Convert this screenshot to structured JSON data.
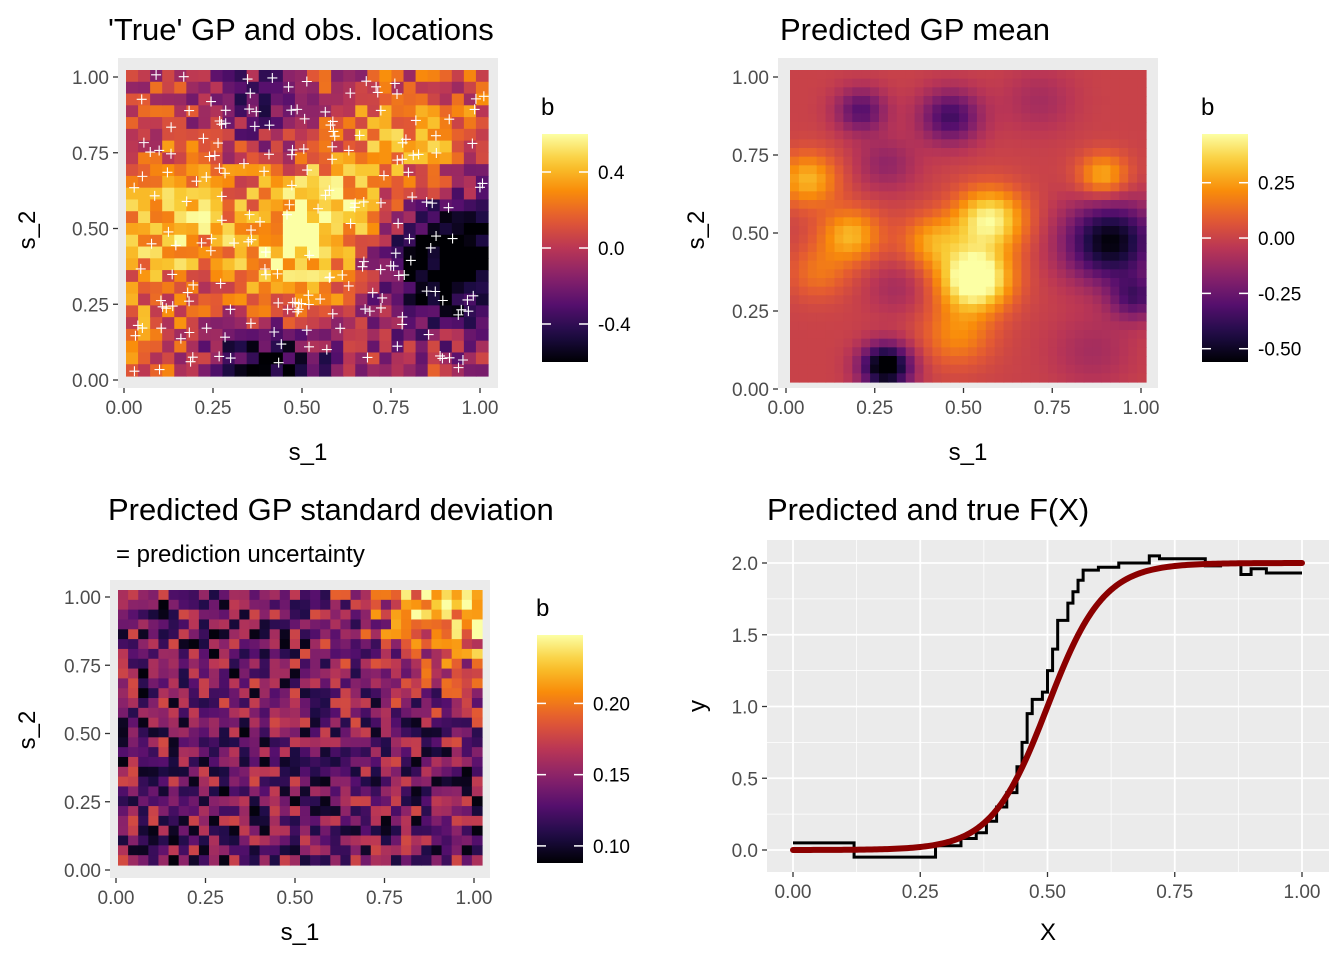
{
  "chart_data": [
    {
      "type": "heatmap",
      "title": "'True' GP and obs. locations",
      "subtitle": "",
      "xlabel": "s_1",
      "ylabel": "s_2",
      "xlim": [
        0,
        1
      ],
      "ylim": [
        0,
        1
      ],
      "xticks": [
        "0.00",
        "0.25",
        "0.50",
        "0.75",
        "1.00"
      ],
      "yticks": [
        "0.00",
        "0.25",
        "0.50",
        "0.75",
        "1.00"
      ],
      "grid_cells": [
        30,
        26
      ],
      "colormap": "inferno",
      "legend": {
        "title": "b",
        "placement": "right",
        "range": [
          -0.6,
          0.6
        ],
        "ticks": [
          -0.4,
          0.0,
          0.4
        ],
        "tick_labels": [
          "-0.4",
          "0.0",
          "0.4"
        ]
      },
      "field_blobs": [
        {
          "x": 0.1,
          "y": 0.5,
          "amp": 0.45,
          "sd": 0.16
        },
        {
          "x": 0.55,
          "y": 0.5,
          "amp": 0.55,
          "sd": 0.14
        },
        {
          "x": 0.8,
          "y": 0.75,
          "amp": 0.35,
          "sd": 0.15
        },
        {
          "x": 0.9,
          "y": 0.4,
          "amp": -0.8,
          "sd": 0.16
        },
        {
          "x": 0.4,
          "y": 0.05,
          "amp": -0.6,
          "sd": 0.13
        },
        {
          "x": 0.35,
          "y": 0.9,
          "amp": -0.3,
          "sd": 0.1
        },
        {
          "x": 0.45,
          "y": 0.25,
          "amp": 0.35,
          "sd": 0.12
        },
        {
          "x": 0.05,
          "y": 0.1,
          "amp": 0.2,
          "sd": 0.12
        }
      ],
      "noise_amplitude": 0.22,
      "observations": {
        "marker": "+",
        "color": "#ffffff",
        "count": 200
      }
    },
    {
      "type": "heatmap",
      "title": "Predicted GP mean",
      "subtitle": "",
      "xlabel": "s_1",
      "ylabel": "s_2",
      "xlim": [
        0,
        1
      ],
      "ylim": [
        0,
        1
      ],
      "xticks": [
        "0.00",
        "0.25",
        "0.50",
        "0.75",
        "1.00"
      ],
      "yticks": [
        "0.00",
        "0.25",
        "0.50",
        "0.75",
        "1.00"
      ],
      "grid_cells": [
        40,
        36
      ],
      "colormap": "inferno",
      "legend": {
        "title": "b",
        "placement": "right",
        "range": [
          -0.56,
          0.47
        ],
        "ticks": [
          -0.5,
          -0.25,
          0.0,
          0.25
        ],
        "tick_labels": [
          "-0.50",
          "-0.25",
          "0.00",
          "0.25"
        ]
      },
      "field_blobs": [
        {
          "x": 0.05,
          "y": 0.65,
          "amp": 0.3,
          "sd": 0.06
        },
        {
          "x": 0.17,
          "y": 0.47,
          "amp": 0.3,
          "sd": 0.06
        },
        {
          "x": 0.52,
          "y": 0.33,
          "amp": 0.6,
          "sd": 0.07
        },
        {
          "x": 0.56,
          "y": 0.52,
          "amp": 0.45,
          "sd": 0.07
        },
        {
          "x": 0.4,
          "y": 0.45,
          "amp": 0.25,
          "sd": 0.06
        },
        {
          "x": 0.47,
          "y": 0.15,
          "amp": 0.2,
          "sd": 0.07
        },
        {
          "x": 0.08,
          "y": 0.35,
          "amp": 0.15,
          "sd": 0.06
        },
        {
          "x": 0.88,
          "y": 0.66,
          "amp": 0.3,
          "sd": 0.05
        },
        {
          "x": 0.9,
          "y": 0.45,
          "amp": -0.55,
          "sd": 0.09
        },
        {
          "x": 0.97,
          "y": 0.27,
          "amp": -0.3,
          "sd": 0.05
        },
        {
          "x": 0.27,
          "y": 0.05,
          "amp": -0.65,
          "sd": 0.05
        },
        {
          "x": 0.45,
          "y": 0.85,
          "amp": -0.35,
          "sd": 0.06
        },
        {
          "x": 0.2,
          "y": 0.87,
          "amp": -0.3,
          "sd": 0.05
        },
        {
          "x": 0.27,
          "y": 0.7,
          "amp": -0.15,
          "sd": 0.06
        },
        {
          "x": 0.85,
          "y": 0.1,
          "amp": -0.1,
          "sd": 0.08
        },
        {
          "x": 0.3,
          "y": 0.3,
          "amp": -0.1,
          "sd": 0.06
        },
        {
          "x": 0.7,
          "y": 0.9,
          "amp": -0.1,
          "sd": 0.07
        }
      ],
      "noise_amplitude": 0.0
    },
    {
      "type": "heatmap",
      "title": "Predicted GP standard deviation",
      "subtitle": " = prediction uncertainty",
      "xlabel": "s_1",
      "ylabel": "s_2",
      "xlim": [
        0,
        1
      ],
      "ylim": [
        0,
        1
      ],
      "xticks": [
        "0.00",
        "0.25",
        "0.50",
        "0.75",
        "1.00"
      ],
      "yticks": [
        "0.00",
        "0.25",
        "0.50",
        "0.75",
        "1.00"
      ],
      "grid_cells": [
        36,
        28
      ],
      "colormap": "inferno",
      "legend": {
        "title": "b",
        "placement": "right",
        "range": [
          0.088,
          0.248
        ],
        "ticks": [
          0.1,
          0.15,
          0.2
        ],
        "tick_labels": [
          "0.10",
          "0.15",
          "0.20"
        ]
      },
      "base_value": 0.135,
      "corner_increase": {
        "x": 1.0,
        "y": 1.0,
        "amp": 0.115,
        "sd": 0.2
      },
      "noise_amplitude": 0.045
    },
    {
      "type": "line",
      "title": "Predicted and true F(X)",
      "subtitle": "",
      "xlabel": "X",
      "ylabel": "y",
      "xlim": [
        0,
        1
      ],
      "ylim": [
        -0.1,
        2.1
      ],
      "xticks": [
        "0.00",
        "0.25",
        "0.50",
        "0.75",
        "1.00"
      ],
      "yticks": [
        "0.0",
        "0.5",
        "1.0",
        "1.5",
        "2.0"
      ],
      "grid": true,
      "series": [
        {
          "style": "step",
          "color": "#000000",
          "x": [
            0.0,
            0.12,
            0.12,
            0.28,
            0.28,
            0.33,
            0.33,
            0.36,
            0.36,
            0.38,
            0.38,
            0.4,
            0.4,
            0.42,
            0.42,
            0.44,
            0.44,
            0.45,
            0.45,
            0.46,
            0.46,
            0.47,
            0.47,
            0.49,
            0.49,
            0.5,
            0.5,
            0.51,
            0.51,
            0.52,
            0.52,
            0.54,
            0.54,
            0.55,
            0.55,
            0.56,
            0.56,
            0.57,
            0.57,
            0.6,
            0.6,
            0.64,
            0.64,
            0.7,
            0.7,
            0.72,
            0.72,
            0.81,
            0.81,
            0.84,
            0.84,
            0.88,
            0.88,
            0.9,
            0.9,
            0.93,
            0.93,
            1.0
          ],
          "y": [
            0.05,
            0.05,
            -0.05,
            -0.05,
            0.03,
            0.03,
            0.08,
            0.08,
            0.12,
            0.12,
            0.2,
            0.2,
            0.3,
            0.3,
            0.4,
            0.4,
            0.58,
            0.58,
            0.75,
            0.75,
            0.95,
            0.95,
            1.05,
            1.05,
            1.1,
            1.1,
            1.25,
            1.25,
            1.4,
            1.4,
            1.6,
            1.6,
            1.72,
            1.72,
            1.8,
            1.8,
            1.88,
            1.88,
            1.95,
            1.95,
            1.97,
            1.97,
            2.0,
            2.0,
            2.05,
            2.05,
            2.03,
            2.03,
            1.98,
            1.98,
            2.0,
            2.0,
            1.92,
            1.92,
            1.96,
            1.96,
            1.93,
            1.93
          ]
        },
        {
          "style": "smooth",
          "color": "#8b0000",
          "function": "logistic",
          "parameters": {
            "ymax": 2.0,
            "midpoint": 0.5,
            "scale": 0.055
          }
        }
      ]
    }
  ]
}
